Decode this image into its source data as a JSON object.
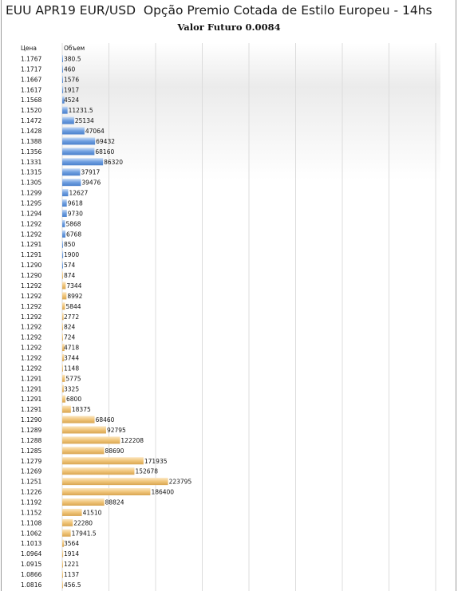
{
  "title": "EUU APR19 EUR/USD  Opção Premio Cotada de Estilo Europeu - 14hs",
  "subtitle": "Valor Futuro  0.0084",
  "colors": {
    "call": "#6f9fe0",
    "put": "#f0c57a",
    "grid": "#dcdcdc"
  },
  "chart_data": {
    "type": "bar",
    "orientation": "horizontal",
    "columns": [
      "Цена",
      "Объем"
    ],
    "xlim": [
      0,
      800000
    ],
    "grid": true,
    "rows": [
      {
        "price": "1.1767",
        "volume": "380.5",
        "value": 380.5,
        "side": "call"
      },
      {
        "price": "1.1717",
        "volume": "460",
        "value": 460,
        "side": "call"
      },
      {
        "price": "1.1667",
        "volume": "1576",
        "value": 1576,
        "side": "call"
      },
      {
        "price": "1.1617",
        "volume": "1917",
        "value": 1917,
        "side": "call"
      },
      {
        "price": "1.1568",
        "volume": "4524",
        "value": 4524,
        "side": "call"
      },
      {
        "price": "1.1520",
        "volume": "11231.5",
        "value": 11231.5,
        "side": "call"
      },
      {
        "price": "1.1472",
        "volume": "25134",
        "value": 25134,
        "side": "call"
      },
      {
        "price": "1.1428",
        "volume": "47064",
        "value": 47064,
        "side": "call"
      },
      {
        "price": "1.1388",
        "volume": "69432",
        "value": 69432,
        "side": "call"
      },
      {
        "price": "1.1356",
        "volume": "68160",
        "value": 68160,
        "side": "call"
      },
      {
        "price": "1.1331",
        "volume": "86320",
        "value": 86320,
        "side": "call"
      },
      {
        "price": "1.1315",
        "volume": "37917",
        "value": 37917,
        "side": "call"
      },
      {
        "price": "1.1305",
        "volume": "39476",
        "value": 39476,
        "side": "call"
      },
      {
        "price": "1.1299",
        "volume": "12627",
        "value": 12627,
        "side": "call"
      },
      {
        "price": "1.1295",
        "volume": "9618",
        "value": 9618,
        "side": "call"
      },
      {
        "price": "1.1294",
        "volume": "9730",
        "value": 9730,
        "side": "call"
      },
      {
        "price": "1.1292",
        "volume": "5868",
        "value": 5868,
        "side": "call"
      },
      {
        "price": "1.1292",
        "volume": "6768",
        "value": 6768,
        "side": "call"
      },
      {
        "price": "1.1291",
        "volume": "850",
        "value": 850,
        "side": "call"
      },
      {
        "price": "1.1291",
        "volume": "1900",
        "value": 1900,
        "side": "call"
      },
      {
        "price": "1.1290",
        "volume": "574",
        "value": 574,
        "side": "call"
      },
      {
        "price": "1.1290",
        "volume": "874",
        "value": 874,
        "side": "put"
      },
      {
        "price": "1.1292",
        "volume": "7344",
        "value": 7344,
        "side": "put"
      },
      {
        "price": "1.1292",
        "volume": "8992",
        "value": 8992,
        "side": "put"
      },
      {
        "price": "1.1292",
        "volume": "5844",
        "value": 5844,
        "side": "put"
      },
      {
        "price": "1.1292",
        "volume": "2772",
        "value": 2772,
        "side": "put"
      },
      {
        "price": "1.1292",
        "volume": "824",
        "value": 824,
        "side": "put"
      },
      {
        "price": "1.1292",
        "volume": "724",
        "value": 724,
        "side": "put"
      },
      {
        "price": "1.1292",
        "volume": "4718",
        "value": 4718,
        "side": "put"
      },
      {
        "price": "1.1292",
        "volume": "3744",
        "value": 3744,
        "side": "put"
      },
      {
        "price": "1.1292",
        "volume": "1148",
        "value": 1148,
        "side": "put"
      },
      {
        "price": "1.1291",
        "volume": "5775",
        "value": 5775,
        "side": "put"
      },
      {
        "price": "1.1291",
        "volume": "3325",
        "value": 3325,
        "side": "put"
      },
      {
        "price": "1.1291",
        "volume": "6800",
        "value": 6800,
        "side": "put"
      },
      {
        "price": "1.1291",
        "volume": "18375",
        "value": 18375,
        "side": "put"
      },
      {
        "price": "1.1290",
        "volume": "68460",
        "value": 68460,
        "side": "put"
      },
      {
        "price": "1.1289",
        "volume": "92795",
        "value": 92795,
        "side": "put"
      },
      {
        "price": "1.1288",
        "volume": "122208",
        "value": 122208,
        "side": "put"
      },
      {
        "price": "1.1285",
        "volume": "88690",
        "value": 88690,
        "side": "put"
      },
      {
        "price": "1.1279",
        "volume": "171935",
        "value": 171935,
        "side": "put"
      },
      {
        "price": "1.1269",
        "volume": "152678",
        "value": 152678,
        "side": "put"
      },
      {
        "price": "1.1251",
        "volume": "223795",
        "value": 223795,
        "side": "put"
      },
      {
        "price": "1.1226",
        "volume": "186400",
        "value": 186400,
        "side": "put"
      },
      {
        "price": "1.1192",
        "volume": "88824",
        "value": 88824,
        "side": "put"
      },
      {
        "price": "1.1152",
        "volume": "41510",
        "value": 41510,
        "side": "put"
      },
      {
        "price": "1.1108",
        "volume": "22280",
        "value": 22280,
        "side": "put"
      },
      {
        "price": "1.1062",
        "volume": "17941.5",
        "value": 17941.5,
        "side": "put"
      },
      {
        "price": "1.1013",
        "volume": "3564",
        "value": 3564,
        "side": "put"
      },
      {
        "price": "1.0964",
        "volume": "1914",
        "value": 1914,
        "side": "put"
      },
      {
        "price": "1.0915",
        "volume": "1221",
        "value": 1221,
        "side": "put"
      },
      {
        "price": "1.0866",
        "volume": "1137",
        "value": 1137,
        "side": "put"
      },
      {
        "price": "1.0816",
        "volume": "456.5",
        "value": 456.5,
        "side": "put"
      }
    ]
  }
}
